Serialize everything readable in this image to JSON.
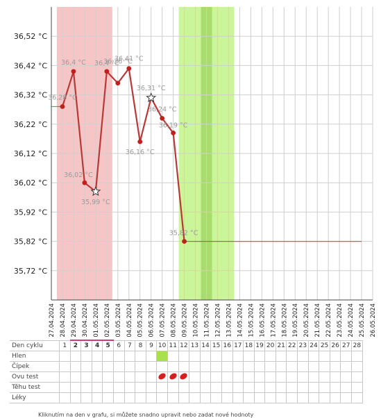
{
  "chart_data": {
    "type": "line",
    "title": "",
    "xlabel": "",
    "ylabel": "",
    "ylim": [
      35.62,
      36.62
    ],
    "yticks": [
      "36,52 °C",
      "36,42 °C",
      "36,32 °C",
      "36,22 °C",
      "36,12 °C",
      "36,02 °C",
      "35,92 °C",
      "35,82 °C",
      "35,72 °C"
    ],
    "ytick_values": [
      36.52,
      36.42,
      36.32,
      36.22,
      36.12,
      36.02,
      35.92,
      35.82,
      35.72
    ],
    "x_dates": [
      "27.04.2024",
      "28.04.2024",
      "29.04.2024",
      "30.04.2024",
      "01.05.2024",
      "02.05.2024",
      "03.05.2024",
      "04.05.2024",
      "05.05.2024",
      "06.05.2024",
      "07.05.2024",
      "08.05.2024",
      "09.05.2024",
      "10.05.2024",
      "11.05.2024",
      "12.05.2024",
      "13.05.2024",
      "14.05.2024",
      "15.05.2024",
      "16.05.2024",
      "17.05.2024",
      "18.05.2024",
      "19.05.2024",
      "20.05.2024",
      "21.05.2024",
      "22.05.2024",
      "23.05.2024",
      "24.05.2024",
      "25.05.2024",
      "26.05.2024"
    ],
    "series": [
      {
        "values": [
          {
            "x": "28.04.2024",
            "y": 36.28,
            "label": "36,28 °C"
          },
          {
            "x": "29.04.2024",
            "y": 36.4,
            "label": "36,4 °C"
          },
          {
            "x": "30.04.2024",
            "y": 36.02,
            "label": "36,02 °C"
          },
          {
            "x": "01.05.2024",
            "y": 35.99,
            "label": "35,99 °C",
            "marker": "star"
          },
          {
            "x": "02.05.2024",
            "y": 36.4,
            "label": "36,4 °C"
          },
          {
            "x": "03.05.2024",
            "y": 36.36,
            "label": "36,36 °C"
          },
          {
            "x": "04.05.2024",
            "y": 36.41,
            "label": "36,41 °C"
          },
          {
            "x": "05.05.2024",
            "y": 36.16,
            "label": "36,16 °C"
          },
          {
            "x": "06.05.2024",
            "y": 36.31,
            "label": "36,31 °C",
            "marker": "star"
          },
          {
            "x": "07.05.2024",
            "y": 36.24,
            "label": "36,24 °C"
          },
          {
            "x": "08.05.2024",
            "y": 36.19,
            "label": "36,19 °C"
          },
          {
            "x": "09.05.2024",
            "y": 35.82,
            "label": "35,82 °C"
          }
        ]
      }
    ],
    "baseline_left": {
      "from": "27.04.2024",
      "to": "28.04.2024",
      "y": 36.28
    },
    "baseline_right": {
      "from": "09.05.2024",
      "to": "25.05.2024",
      "y": 35.82
    },
    "shaded_ranges": [
      {
        "from": "27.04.2024",
        "to": "02.05.2024",
        "color": "#f6c6c6",
        "meaning": "menstruation"
      },
      {
        "from": "08.05.2024",
        "to": "13.05.2024",
        "color": "#cbf59a",
        "meaning": "fertile window"
      },
      {
        "from": "10.05.2024",
        "to": "11.05.2024",
        "color": "#a9dc6f",
        "meaning": "peak"
      }
    ],
    "grid": true,
    "line_color": "#b83838"
  },
  "table": {
    "rows": [
      {
        "label": "Den cyklu",
        "type": "days"
      },
      {
        "label": "Hlen",
        "type": "mucus"
      },
      {
        "label": "Čípek",
        "type": "empty"
      },
      {
        "label": "Ovu test",
        "type": "ovu"
      },
      {
        "label": "Těhu test",
        "type": "empty"
      },
      {
        "label": "Léky",
        "type": "empty"
      }
    ],
    "days": [
      "1",
      "2",
      "3",
      "4",
      "5",
      "6",
      "7",
      "8",
      "9",
      "10",
      "11",
      "12",
      "13",
      "14",
      "15",
      "16",
      "17",
      "18",
      "19",
      "20",
      "21",
      "22",
      "23",
      "24",
      "25",
      "26",
      "27",
      "28"
    ],
    "menstruation_days": [
      2,
      3,
      4,
      5
    ],
    "mucus_days": [
      10
    ],
    "ovu_positive_days": [
      10,
      11,
      12
    ]
  },
  "footnote": "Kliknutím na den v grafu, si můžete snadno upravit nebo zadat nové hodnoty"
}
